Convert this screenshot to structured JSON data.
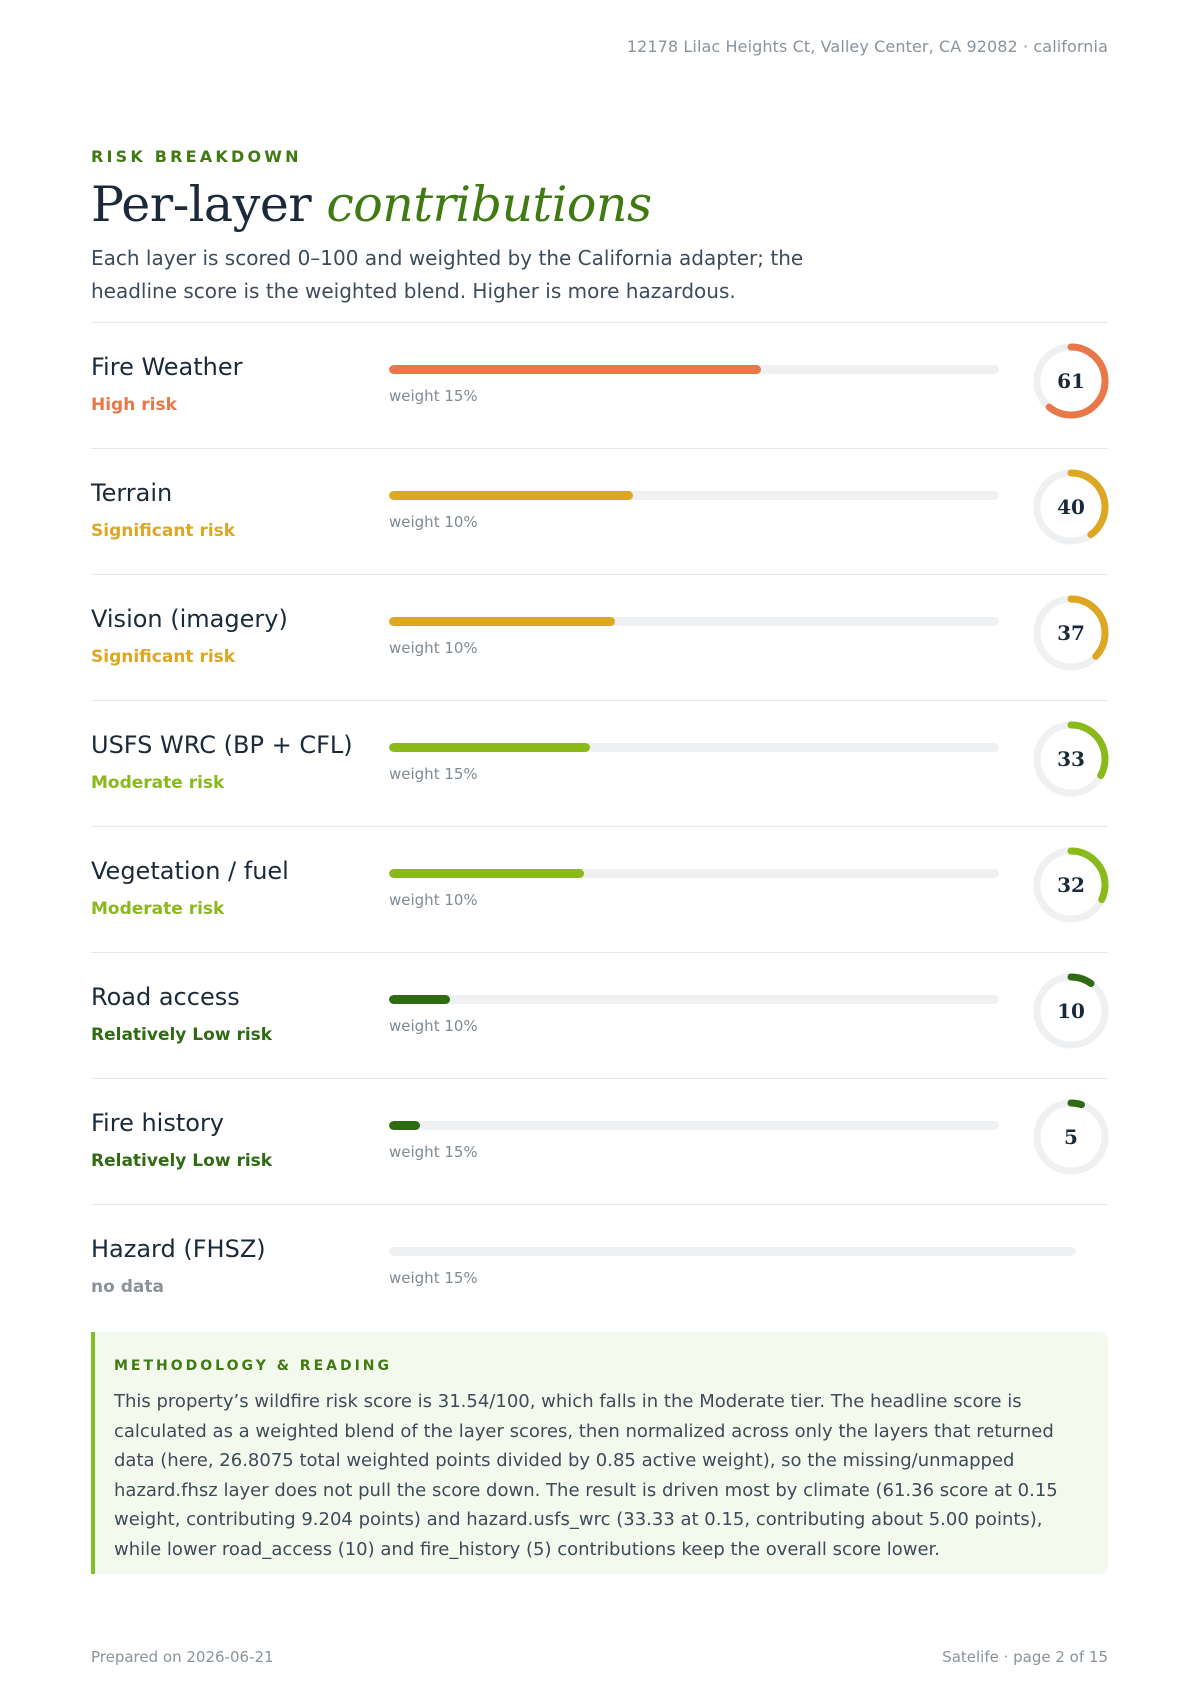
{
  "header": {
    "address": "12178 Lilac Heights Ct, Valley Center, CA 92082 · california"
  },
  "section": {
    "eyebrow": "RISK BREAKDOWN",
    "title_plain": "Per-layer ",
    "title_accent": "contributions",
    "intro": "Each layer is scored 0–100 and weighted by the California adapter; the headline score is the weighted blend. Higher is more hazardous."
  },
  "layers": [
    {
      "name": "Fire Weather",
      "tier": "High risk",
      "weight_label": "weight 15%",
      "score": 61,
      "score_label": "61",
      "color": "#e8784a"
    },
    {
      "name": "Terrain",
      "tier": "Significant risk",
      "weight_label": "weight 10%",
      "score": 40,
      "score_label": "40",
      "color": "#dda623"
    },
    {
      "name": "Vision (imagery)",
      "tier": "Significant risk",
      "weight_label": "weight 10%",
      "score": 37,
      "score_label": "37",
      "color": "#dda623"
    },
    {
      "name": "USFS WRC (BP + CFL)",
      "tier": "Moderate risk",
      "weight_label": "weight 15%",
      "score": 33,
      "score_label": "33",
      "color": "#8ab91a"
    },
    {
      "name": "Vegetation / fuel",
      "tier": "Moderate risk",
      "weight_label": "weight 10%",
      "score": 32,
      "score_label": "32",
      "color": "#8ab91a"
    },
    {
      "name": "Road access",
      "tier": "Relatively Low risk",
      "weight_label": "weight 10%",
      "score": 10,
      "score_label": "10",
      "color": "#2f6b12"
    },
    {
      "name": "Fire history",
      "tier": "Relatively Low risk",
      "weight_label": "weight 15%",
      "score": 5,
      "score_label": "5",
      "color": "#2f6b12"
    },
    {
      "name": "Hazard (FHSZ)",
      "tier": "no data",
      "weight_label": "weight 15%",
      "score": null,
      "score_label": "",
      "color": "#8a939c"
    }
  ],
  "methodology": {
    "label": "METHODOLOGY & READING",
    "text": "This property’s wildfire risk score is 31.54/100, which falls in the Moderate tier. The headline score is calculated as a weighted blend of the layer scores, then normalized across only the layers that returned data (here, 26.8075 total weighted points divided by 0.85 active weight), so the missing/unmapped hazard.fhsz layer does not pull the score down. The result is driven most by climate (61.36 score at 0.15 weight, contributing 9.204 points) and hazard.usfs_wrc (33.33 at 0.15, contributing about 5.00 points), while lower road_access (10) and fire_history (5) contributions keep the overall score lower."
  },
  "footer": {
    "prepared": "Prepared on 2026-06-21",
    "page": "Satelife · page 2 of 15"
  }
}
